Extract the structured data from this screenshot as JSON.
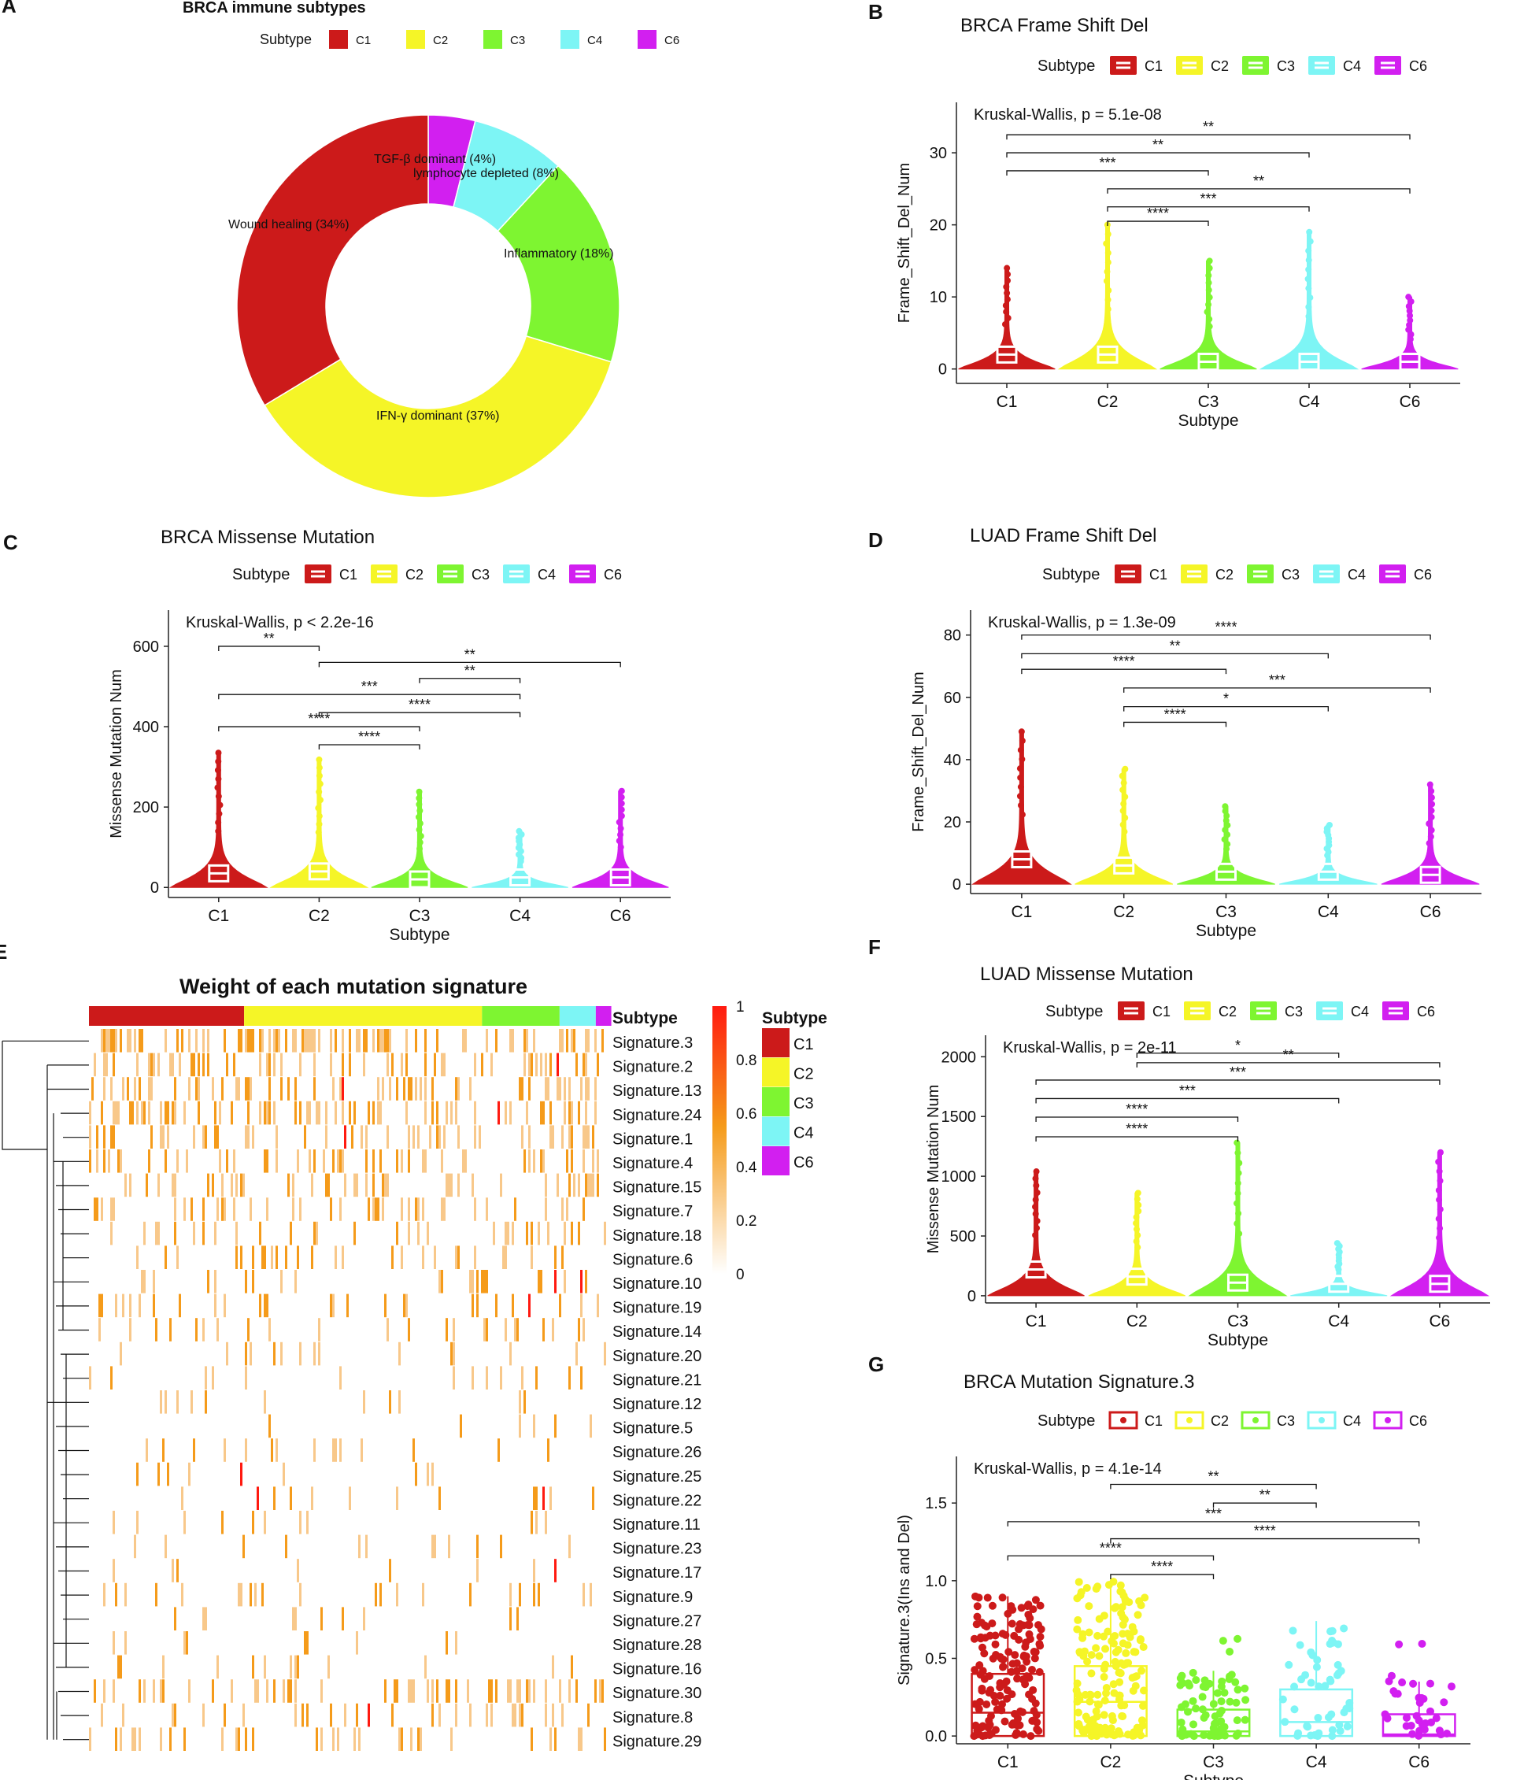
{
  "colors": {
    "C1": "#cc1a1a",
    "C2": "#f5f527",
    "C3": "#7ef531",
    "C4": "#7df5f5",
    "C6": "#d21ff0",
    "axis": "#222222",
    "heat_low": "#ffffff",
    "heat_mid": "#f59b1a",
    "heat_high": "#ff1a10"
  },
  "subtype_label": "Subtype",
  "subtypes": [
    "C1",
    "C2",
    "C3",
    "C4",
    "C6"
  ],
  "chart_data": [
    {
      "id": "A",
      "panel_letter": "A",
      "type": "pie",
      "title": "BRCA immune subtypes",
      "legend_title": "Subtype",
      "legend_items": [
        "C1",
        "C2",
        "C3",
        "C4",
        "C6"
      ],
      "slices": [
        {
          "key": "C6",
          "label": "TGF-β dominant (4%)",
          "value": 4
        },
        {
          "key": "C4",
          "label": "lymphocyte depleted (8%)",
          "value": 8
        },
        {
          "key": "C3",
          "label": "Inflammatory (18%)",
          "value": 18
        },
        {
          "key": "C2",
          "label": "IFN-γ dominant (37%)",
          "value": 37
        },
        {
          "key": "C1",
          "label": "Wound healing (34%)",
          "value": 34
        }
      ]
    },
    {
      "id": "B",
      "panel_letter": "B",
      "type": "violin",
      "title": "BRCA Frame Shift Del",
      "legend_title": "Subtype",
      "xlabel": "Subtype",
      "ylabel": "Frame_Shift_Del_Num",
      "categories": [
        "C1",
        "C2",
        "C3",
        "C4",
        "C6"
      ],
      "ylim": [
        -2,
        37
      ],
      "yticks": [
        0,
        10,
        20,
        30
      ],
      "test_label": "Kruskal-Wallis, p = 5.1e-08",
      "medians": [
        2,
        2,
        1,
        1,
        1
      ],
      "maxima": [
        14,
        20,
        15,
        19,
        10
      ],
      "brackets": [
        {
          "from": "C1",
          "to": "C6",
          "y": 32.5,
          "label": "**"
        },
        {
          "from": "C1",
          "to": "C4",
          "y": 30,
          "label": "**"
        },
        {
          "from": "C1",
          "to": "C3",
          "y": 27.5,
          "label": "***"
        },
        {
          "from": "C2",
          "to": "C6",
          "y": 25,
          "label": "**"
        },
        {
          "from": "C2",
          "to": "C4",
          "y": 22.5,
          "label": "***"
        },
        {
          "from": "C2",
          "to": "C3",
          "y": 20.5,
          "label": "****"
        }
      ]
    },
    {
      "id": "C",
      "panel_letter": "C",
      "type": "violin",
      "title": "BRCA Missense Mutation",
      "legend_title": "Subtype",
      "xlabel": "Subtype",
      "ylabel": "Missense Mutation Num",
      "categories": [
        "C1",
        "C2",
        "C3",
        "C4",
        "C6"
      ],
      "ylim": [
        -25,
        690
      ],
      "yticks": [
        0,
        200,
        400,
        600
      ],
      "test_label": "Kruskal-Wallis, p < 2.2e-16",
      "medians": [
        35,
        40,
        20,
        25,
        25
      ],
      "maxima": [
        335,
        318,
        238,
        140,
        240
      ],
      "brackets": [
        {
          "from": "C1",
          "to": "C2",
          "y": 600,
          "label": "**"
        },
        {
          "from": "C2",
          "to": "C6",
          "y": 560,
          "label": "**"
        },
        {
          "from": "C3",
          "to": "C4",
          "y": 520,
          "label": "**"
        },
        {
          "from": "C1",
          "to": "C4",
          "y": 480,
          "label": "***"
        },
        {
          "from": "C2",
          "to": "C4",
          "y": 435,
          "label": "****"
        },
        {
          "from": "C1",
          "to": "C3",
          "y": 400,
          "label": "****"
        },
        {
          "from": "C2",
          "to": "C3",
          "y": 355,
          "label": "****"
        }
      ]
    },
    {
      "id": "D",
      "panel_letter": "D",
      "type": "violin",
      "title": "LUAD Frame Shift Del",
      "legend_title": "Subtype",
      "xlabel": "Subtype",
      "ylabel": "Frame_Shift_Del_Num",
      "categories": [
        "C1",
        "C2",
        "C3",
        "C4",
        "C6"
      ],
      "ylim": [
        -3,
        88
      ],
      "yticks": [
        0,
        20,
        40,
        60,
        80
      ],
      "test_label": "Kruskal-Wallis, p = 1.3e-09",
      "medians": [
        8,
        6,
        4,
        4,
        3
      ],
      "maxima": [
        49,
        37,
        25,
        19,
        32
      ],
      "brackets": [
        {
          "from": "C1",
          "to": "C6",
          "y": 80,
          "label": "****"
        },
        {
          "from": "C1",
          "to": "C4",
          "y": 74,
          "label": "**"
        },
        {
          "from": "C1",
          "to": "C3",
          "y": 69,
          "label": "****"
        },
        {
          "from": "C2",
          "to": "C6",
          "y": 63,
          "label": "***"
        },
        {
          "from": "C2",
          "to": "C4",
          "y": 57,
          "label": "*"
        },
        {
          "from": "C2",
          "to": "C3",
          "y": 52,
          "label": "****"
        }
      ]
    },
    {
      "id": "E",
      "panel_letter": "E",
      "type": "heatmap",
      "title": "Weight of each mutation signature",
      "annotation_label": "Subtype",
      "colorbar_ticks": [
        "1",
        "0.8",
        "0.6",
        "0.4",
        "0.2",
        "0"
      ],
      "legend_title": "Subtype",
      "legend_items": [
        "C1",
        "C2",
        "C3",
        "C4",
        "C6"
      ],
      "rows": [
        "Signature.3",
        "Signature.2",
        "Signature.13",
        "Signature.24",
        "Signature.1",
        "Signature.4",
        "Signature.15",
        "Signature.7",
        "Signature.18",
        "Signature.6",
        "Signature.10",
        "Signature.19",
        "Signature.14",
        "Signature.20",
        "Signature.21",
        "Signature.12",
        "Signature.5",
        "Signature.26",
        "Signature.25",
        "Signature.22",
        "Signature.11",
        "Signature.23",
        "Signature.17",
        "Signature.9",
        "Signature.27",
        "Signature.28",
        "Signature.16",
        "Signature.30",
        "Signature.8",
        "Signature.29"
      ],
      "row_density": [
        0.65,
        0.25,
        0.28,
        0.26,
        0.24,
        0.2,
        0.18,
        0.16,
        0.14,
        0.12,
        0.1,
        0.09,
        0.09,
        0.08,
        0.07,
        0.07,
        0.06,
        0.06,
        0.06,
        0.06,
        0.06,
        0.05,
        0.05,
        0.05,
        0.05,
        0.05,
        0.05,
        0.18,
        0.12,
        0.16
      ],
      "subtype_fractions": [
        0.3,
        0.46,
        0.15,
        0.07,
        0.03
      ]
    },
    {
      "id": "F",
      "panel_letter": "F",
      "type": "violin",
      "title": "LUAD Missense Mutation",
      "legend_title": "Subtype",
      "xlabel": "Subtype",
      "ylabel": "Missense Mutation Num",
      "categories": [
        "C1",
        "C2",
        "C3",
        "C4",
        "C6"
      ],
      "ylim": [
        -60,
        2180
      ],
      "yticks": [
        0,
        500,
        1000,
        1500,
        2000
      ],
      "test_label": "Kruskal-Wallis, p = 2e-11",
      "medians": [
        220,
        160,
        110,
        100,
        100
      ],
      "maxima": [
        1040,
        860,
        1280,
        440,
        1200
      ],
      "brackets": [
        {
          "from": "C2",
          "to": "C4",
          "y": 2030,
          "label": "*"
        },
        {
          "from": "C2",
          "to": "C6",
          "y": 1950,
          "label": "**"
        },
        {
          "from": "C1",
          "to": "C6",
          "y": 1805,
          "label": "***"
        },
        {
          "from": "C1",
          "to": "C4",
          "y": 1650,
          "label": "***"
        },
        {
          "from": "C1",
          "to": "C3",
          "y": 1495,
          "label": "****"
        },
        {
          "from": "C1",
          "to": "C3",
          "y": 1330,
          "label": "****"
        }
      ]
    },
    {
      "id": "G",
      "panel_letter": "G",
      "type": "box",
      "title": "BRCA Mutation Signature.3",
      "legend_title": "Subtype",
      "xlabel": "Subtype",
      "ylabel": "Signature.3(Ins and Del)",
      "categories": [
        "C1",
        "C2",
        "C3",
        "C4",
        "C6"
      ],
      "ylim": [
        -0.05,
        1.8
      ],
      "yticks": [
        0,
        0.5,
        1,
        1.5
      ],
      "ytick_labels": [
        "0.0",
        "0.5",
        "1.0",
        "1.5"
      ],
      "test_label": "Kruskal-Wallis, p = 4.1e-14",
      "boxes": [
        {
          "q1": 0.0,
          "median": 0.15,
          "q3": 0.4,
          "whisker_high": 0.9,
          "max": 0.92,
          "points": 150
        },
        {
          "q1": 0.0,
          "median": 0.22,
          "q3": 0.45,
          "whisker_high": 1.0,
          "max": 1.0,
          "points": 160
        },
        {
          "q1": 0.0,
          "median": 0.03,
          "q3": 0.17,
          "whisker_high": 0.42,
          "max": 0.73,
          "points": 70
        },
        {
          "q1": 0.0,
          "median": 0.09,
          "q3": 0.3,
          "whisker_high": 0.74,
          "max": 0.74,
          "points": 50
        },
        {
          "q1": 0.0,
          "median": 0.01,
          "q3": 0.14,
          "whisker_high": 0.35,
          "max": 0.68,
          "points": 35
        }
      ],
      "brackets": [
        {
          "from": "C2",
          "to": "C4",
          "y": 1.62,
          "label": "**"
        },
        {
          "from": "C3",
          "to": "C4",
          "y": 1.5,
          "label": "**"
        },
        {
          "from": "C1",
          "to": "C6",
          "y": 1.38,
          "label": "***"
        },
        {
          "from": "C2",
          "to": "C6",
          "y": 1.27,
          "label": "****"
        },
        {
          "from": "C1",
          "to": "C3",
          "y": 1.16,
          "label": "****"
        },
        {
          "from": "C2",
          "to": "C3",
          "y": 1.04,
          "label": "****"
        }
      ]
    }
  ]
}
